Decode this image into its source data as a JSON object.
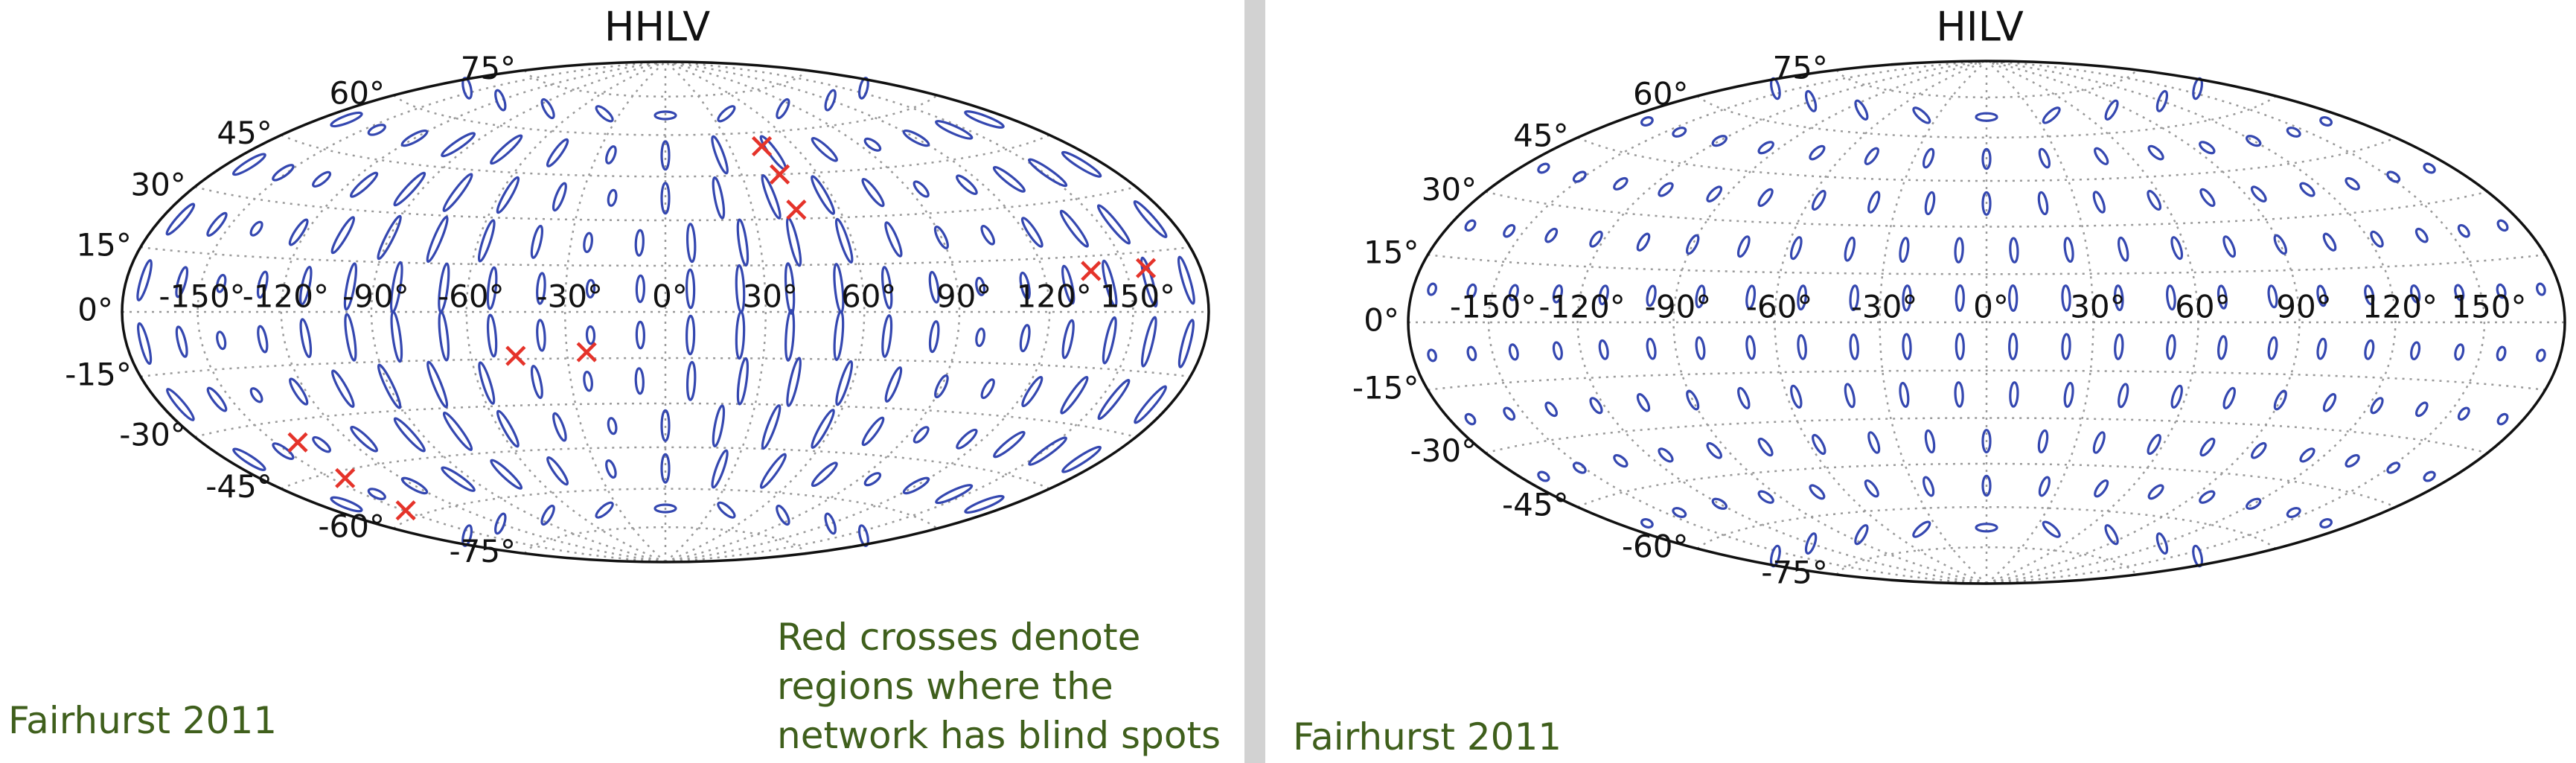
{
  "chart_data": [
    {
      "type": "map",
      "projection": "hammer",
      "title": "HHLV",
      "xlim": [
        -180,
        180
      ],
      "ylim": [
        -90,
        90
      ],
      "grid": true,
      "xticks": [
        {
          "value": -150,
          "label": "-150°"
        },
        {
          "value": -120,
          "label": "-120°"
        },
        {
          "value": -90,
          "label": "-90°"
        },
        {
          "value": -60,
          "label": "-60°"
        },
        {
          "value": -30,
          "label": "-30°"
        },
        {
          "value": 0,
          "label": "0°"
        },
        {
          "value": 30,
          "label": "30°"
        },
        {
          "value": 60,
          "label": "60°"
        },
        {
          "value": 90,
          "label": "90°"
        },
        {
          "value": 120,
          "label": "120°"
        },
        {
          "value": 150,
          "label": "150°"
        }
      ],
      "yticks": [
        {
          "value": -75,
          "label": "-75°"
        },
        {
          "value": -60,
          "label": "-60°"
        },
        {
          "value": -45,
          "label": "-45°"
        },
        {
          "value": -30,
          "label": "-30°"
        },
        {
          "value": -15,
          "label": "-15°"
        },
        {
          "value": 0,
          "label": "0°"
        },
        {
          "value": 15,
          "label": "15°"
        },
        {
          "value": 30,
          "label": "30°"
        },
        {
          "value": 45,
          "label": "45°"
        },
        {
          "value": 60,
          "label": "60°"
        },
        {
          "value": 75,
          "label": "75°"
        }
      ],
      "color": "#3447b0",
      "markers": {
        "color": "#e5332a",
        "x": [
          45,
          45,
          45,
          137,
          158,
          -46,
          -24,
          -141,
          -144,
          -149
        ],
        "y": [
          55,
          45,
          33,
          11,
          11,
          -14,
          -13,
          -36,
          -47,
          -58
        ]
      },
      "annotation": [
        "Red crosses denote",
        "regions where the",
        "network has blind spots"
      ],
      "source": "Fairhurst 2011"
    },
    {
      "type": "map",
      "projection": "hammer",
      "title": "HILV",
      "xlim": [
        -180,
        180
      ],
      "ylim": [
        -90,
        90
      ],
      "grid": true,
      "xticks": [
        {
          "value": -150,
          "label": "-150°"
        },
        {
          "value": -120,
          "label": "-120°"
        },
        {
          "value": -90,
          "label": "-90°"
        },
        {
          "value": -60,
          "label": "-60°"
        },
        {
          "value": -30,
          "label": "-30°"
        },
        {
          "value": 0,
          "label": "0°"
        },
        {
          "value": 30,
          "label": "30°"
        },
        {
          "value": 60,
          "label": "60°"
        },
        {
          "value": 90,
          "label": "90°"
        },
        {
          "value": 120,
          "label": "120°"
        },
        {
          "value": 150,
          "label": "150°"
        }
      ],
      "yticks": [
        {
          "value": -75,
          "label": "-75°"
        },
        {
          "value": -60,
          "label": "-60°"
        },
        {
          "value": -45,
          "label": "-45°"
        },
        {
          "value": -30,
          "label": "-30°"
        },
        {
          "value": -15,
          "label": "-15°"
        },
        {
          "value": 0,
          "label": "0°"
        },
        {
          "value": 15,
          "label": "15°"
        },
        {
          "value": 30,
          "label": "30°"
        },
        {
          "value": 45,
          "label": "45°"
        },
        {
          "value": 60,
          "label": "60°"
        },
        {
          "value": 75,
          "label": "75°"
        }
      ],
      "color": "#3447b0",
      "source": "Fairhurst 2011"
    }
  ]
}
